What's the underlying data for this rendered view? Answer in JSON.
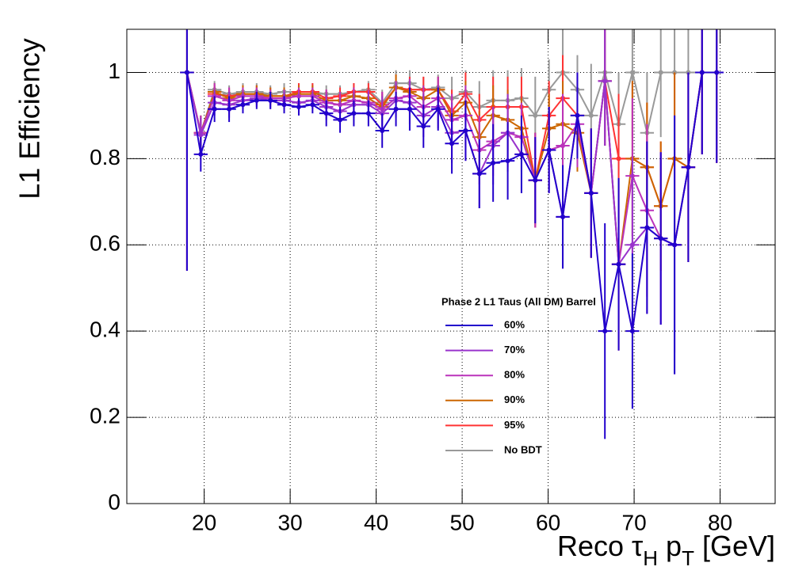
{
  "chart_data": {
    "type": "line",
    "x_label": [
      "Reco τ",
      "H",
      " p",
      "T",
      " [GeV]"
    ],
    "y_label": "L1 Efficiency",
    "legend_title": "Phase 2 L1 Taus (All DM) Barrel",
    "legend_position": "center",
    "grid": true,
    "xlim": [
      11,
      86.4
    ],
    "ylim": [
      0,
      1.1
    ],
    "xticks": [
      20,
      30,
      40,
      50,
      60,
      70,
      80
    ],
    "yticks": [
      0,
      0.2,
      0.4,
      0.6,
      0.8,
      1
    ],
    "xerr": 0.8,
    "x": [
      18.0,
      19.6,
      21.2,
      22.9,
      24.5,
      26.1,
      27.7,
      29.3,
      31.0,
      32.6,
      34.2,
      35.8,
      37.4,
      39.1,
      40.7,
      42.3,
      43.9,
      45.5,
      47.2,
      48.8,
      50.4,
      52.0,
      53.6,
      55.3,
      56.9,
      58.5,
      60.1,
      61.7,
      63.4,
      65.0,
      66.6,
      68.2,
      69.8,
      71.5,
      73.1,
      74.7,
      76.3,
      77.9,
      79.6
    ],
    "series": [
      {
        "name": "No BDT",
        "color": "#999999",
        "values": [
          1.0,
          0.86,
          0.96,
          0.95,
          0.955,
          0.955,
          0.95,
          0.955,
          0.955,
          0.955,
          0.95,
          0.95,
          0.955,
          0.96,
          0.93,
          0.975,
          0.975,
          0.96,
          0.965,
          0.94,
          0.955,
          0.92,
          0.935,
          0.935,
          0.94,
          0.9,
          0.96,
          1.0,
          0.96,
          0.9,
          1.0,
          0.88,
          1.0,
          0.86,
          1.0,
          1.0,
          1.0,
          1.0,
          1.0
        ],
        "errors": [
          0.46,
          0.04,
          0.02,
          0.02,
          0.02,
          0.02,
          0.02,
          0.02,
          0.02,
          0.02,
          0.02,
          0.02,
          0.02,
          0.02,
          0.03,
          0.03,
          0.03,
          0.03,
          0.03,
          0.05,
          0.05,
          0.06,
          0.07,
          0.07,
          0.07,
          0.09,
          0.07,
          0.1,
          0.08,
          0.12,
          0.15,
          0.12,
          0.15,
          0.14,
          0.15,
          0.15,
          0.15,
          0.19,
          0.21
        ]
      },
      {
        "name": "95%",
        "color": "#ff3333",
        "values": [
          1.0,
          0.86,
          0.95,
          0.945,
          0.95,
          0.95,
          0.945,
          0.945,
          0.955,
          0.955,
          0.94,
          0.945,
          0.955,
          0.955,
          0.925,
          0.965,
          0.96,
          0.96,
          0.96,
          0.91,
          0.95,
          0.89,
          0.92,
          0.92,
          0.92,
          0.75,
          0.9,
          0.94,
          0.9,
          0.72,
          0.98,
          0.8,
          0.8,
          0.78,
          0.69,
          0.8,
          0.78,
          1.0,
          1.0
        ],
        "errors": [
          0.46,
          0.04,
          0.02,
          0.02,
          0.02,
          0.02,
          0.02,
          0.02,
          0.02,
          0.02,
          0.02,
          0.02,
          0.02,
          0.02,
          0.03,
          0.03,
          0.03,
          0.03,
          0.03,
          0.05,
          0.05,
          0.06,
          0.07,
          0.07,
          0.07,
          0.11,
          0.08,
          0.1,
          0.09,
          0.15,
          0.15,
          0.15,
          0.18,
          0.15,
          0.15,
          0.2,
          0.22,
          0.19,
          0.21
        ]
      },
      {
        "name": "90%",
        "color": "#cc6600",
        "values": [
          1.0,
          0.86,
          0.955,
          0.94,
          0.95,
          0.95,
          0.945,
          0.945,
          0.95,
          0.95,
          0.935,
          0.935,
          0.945,
          0.94,
          0.92,
          0.965,
          0.955,
          0.94,
          0.96,
          0.9,
          0.93,
          0.85,
          0.9,
          0.89,
          0.87,
          0.75,
          0.87,
          0.88,
          0.86,
          0.72,
          0.98,
          0.555,
          0.8,
          0.78,
          0.69,
          0.8,
          0.78,
          1.0,
          1.0
        ],
        "errors": [
          0.46,
          0.04,
          0.02,
          0.02,
          0.02,
          0.02,
          0.02,
          0.02,
          0.02,
          0.02,
          0.02,
          0.02,
          0.02,
          0.02,
          0.03,
          0.03,
          0.03,
          0.03,
          0.03,
          0.05,
          0.05,
          0.06,
          0.07,
          0.07,
          0.07,
          0.11,
          0.08,
          0.1,
          0.09,
          0.15,
          0.15,
          0.2,
          0.18,
          0.15,
          0.15,
          0.2,
          0.22,
          0.19,
          0.21
        ]
      },
      {
        "name": "80%",
        "color": "#bb33bb",
        "values": [
          1.0,
          0.86,
          0.945,
          0.935,
          0.945,
          0.945,
          0.94,
          0.94,
          0.945,
          0.945,
          0.93,
          0.925,
          0.935,
          0.93,
          0.915,
          0.94,
          0.945,
          0.92,
          0.94,
          0.89,
          0.9,
          0.82,
          0.84,
          0.86,
          0.85,
          0.75,
          0.82,
          0.83,
          0.88,
          0.72,
          0.98,
          0.555,
          0.76,
          0.68,
          0.615,
          0.6,
          0.78,
          1.0,
          1.0
        ],
        "errors": [
          0.46,
          0.04,
          0.03,
          0.03,
          0.02,
          0.02,
          0.02,
          0.02,
          0.02,
          0.02,
          0.03,
          0.03,
          0.03,
          0.03,
          0.04,
          0.04,
          0.04,
          0.05,
          0.05,
          0.06,
          0.07,
          0.08,
          0.08,
          0.08,
          0.08,
          0.11,
          0.09,
          0.12,
          0.1,
          0.15,
          0.15,
          0.2,
          0.18,
          0.2,
          0.2,
          0.25,
          0.22,
          0.19,
          0.21
        ]
      },
      {
        "name": "70%",
        "color": "#9933cc",
        "values": [
          1.0,
          0.855,
          0.93,
          0.925,
          0.935,
          0.94,
          0.935,
          0.935,
          0.93,
          0.935,
          0.92,
          0.91,
          0.925,
          0.925,
          0.905,
          0.935,
          0.93,
          0.9,
          0.92,
          0.86,
          0.865,
          0.765,
          0.83,
          0.86,
          0.81,
          0.75,
          0.82,
          0.665,
          0.9,
          0.72,
          0.98,
          0.555,
          0.6,
          0.64,
          0.615,
          0.6,
          0.78,
          1.0,
          1.0
        ],
        "errors": [
          0.46,
          0.04,
          0.03,
          0.03,
          0.02,
          0.02,
          0.02,
          0.02,
          0.02,
          0.02,
          0.03,
          0.03,
          0.03,
          0.03,
          0.04,
          0.04,
          0.05,
          0.05,
          0.05,
          0.07,
          0.07,
          0.08,
          0.09,
          0.09,
          0.09,
          0.1,
          0.1,
          0.12,
          0.1,
          0.15,
          0.15,
          0.2,
          0.2,
          0.2,
          0.2,
          0.3,
          0.22,
          0.19,
          0.21
        ]
      },
      {
        "name": "60%",
        "color": "#2200cc",
        "values": [
          1.0,
          0.81,
          0.915,
          0.915,
          0.925,
          0.935,
          0.935,
          0.925,
          0.92,
          0.925,
          0.905,
          0.89,
          0.905,
          0.905,
          0.865,
          0.915,
          0.915,
          0.875,
          0.915,
          0.835,
          0.865,
          0.765,
          0.79,
          0.795,
          0.81,
          0.75,
          0.82,
          0.665,
          0.9,
          0.72,
          0.4,
          0.555,
          0.4,
          0.64,
          0.615,
          0.6,
          0.78,
          1.0,
          1.0
        ],
        "errors": [
          0.46,
          0.04,
          0.03,
          0.03,
          0.02,
          0.02,
          0.02,
          0.02,
          0.02,
          0.02,
          0.03,
          0.03,
          0.03,
          0.03,
          0.04,
          0.04,
          0.05,
          0.05,
          0.05,
          0.07,
          0.07,
          0.08,
          0.09,
          0.09,
          0.09,
          0.1,
          0.1,
          0.12,
          0.1,
          0.15,
          0.25,
          0.2,
          0.18,
          0.2,
          0.2,
          0.3,
          0.22,
          0.19,
          0.21
        ]
      }
    ]
  }
}
